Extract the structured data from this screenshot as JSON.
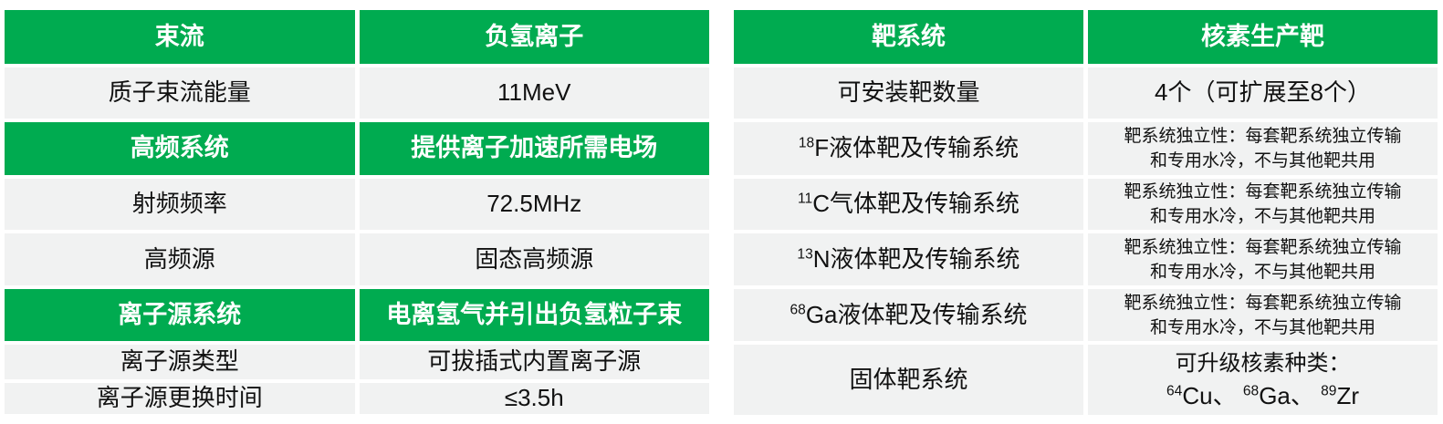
{
  "colors": {
    "accent_green": "#00AB50",
    "row_gray": "#F1F2F2",
    "header_text": "#FFFFFF",
    "body_text": "#111111"
  },
  "left_table": {
    "header": {
      "col1": "束流",
      "col2": "负氢离子"
    },
    "rows": [
      {
        "style": "data",
        "label": "质子束流能量",
        "value": "11MeV"
      },
      {
        "style": "section",
        "label": "高频系统",
        "value": "提供离子加速所需电场"
      },
      {
        "style": "data",
        "label": "射频频率",
        "value": "72.5MHz"
      },
      {
        "style": "data",
        "label": "高频源",
        "value": "固态高频源"
      },
      {
        "style": "section",
        "label": "离子源系统",
        "value": "电离氢气并引出负氢粒子束"
      },
      {
        "style": "data",
        "label": "离子源类型",
        "value": "可拔插式内置离子源"
      },
      {
        "style": "data",
        "label": "离子源更换时间",
        "value": "≤3.5h"
      }
    ]
  },
  "right_table": {
    "header": {
      "col1": "靶系统",
      "col2": "核素生产靶"
    },
    "target_count_row": {
      "label": "可安装靶数量",
      "value": "4个（可扩展至8个）"
    },
    "independence_note": {
      "line1": "靶系统独立性：每套靶系统独立传输",
      "line2": "和专用水冷，不与其他靶共用"
    },
    "isotope_rows": [
      {
        "mass": "18",
        "label": "F液体靶及传输系统"
      },
      {
        "mass": "11",
        "label": "C气体靶及传输系统"
      },
      {
        "mass": "13",
        "label": "N液体靶及传输系统"
      },
      {
        "mass": "68",
        "label": "Ga液体靶及传输系统"
      }
    ],
    "solid_target_row": {
      "label": "固体靶系统",
      "value_line1": "可升级核素种类：",
      "isotopes": [
        {
          "mass": "64",
          "symbol": "Cu",
          "sep": "、"
        },
        {
          "mass": "68",
          "symbol": "Ga",
          "sep": "、"
        },
        {
          "mass": "89",
          "symbol": "Zr",
          "sep": ""
        }
      ]
    }
  }
}
